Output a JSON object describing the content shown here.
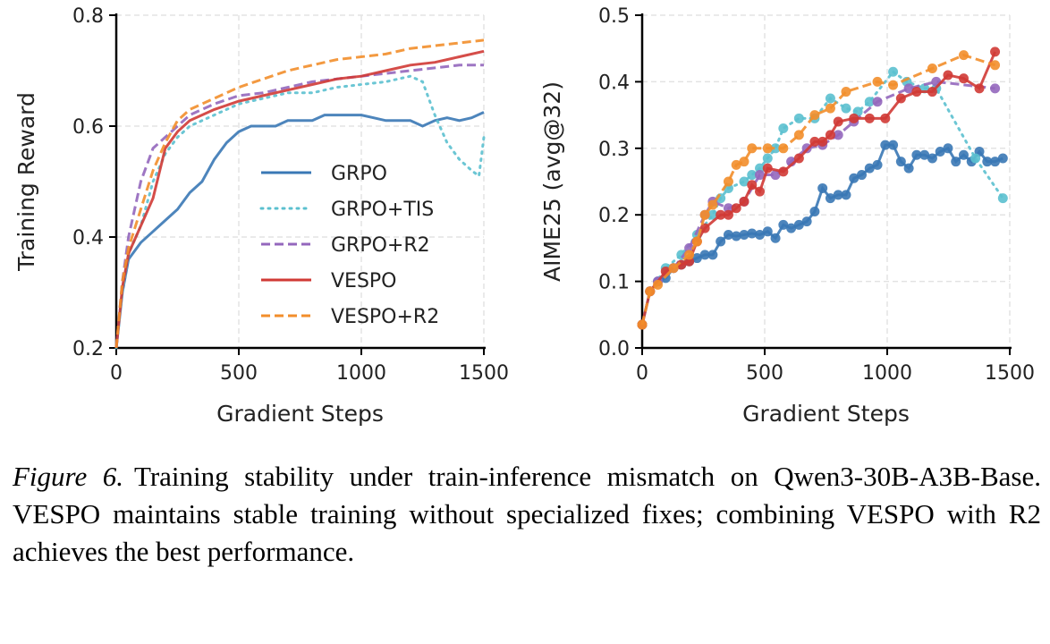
{
  "colors": {
    "GRPO": "#3a78b5",
    "GRPO+TIS": "#5bc0cf",
    "GRPO+R2": "#9467bd",
    "VESPO": "#d03a35",
    "VESPO+R2": "#f28e2b"
  },
  "chart_data": [
    {
      "type": "line",
      "xlabel": "Gradient Steps",
      "ylabel": "Training Reward",
      "xlim": [
        0,
        1500
      ],
      "ylim": [
        0.2,
        0.8
      ],
      "xticks": [
        0,
        500,
        1000,
        1500
      ],
      "yticks": [
        0.2,
        0.4,
        0.6,
        0.8
      ],
      "grid": true,
      "legend": "center-right",
      "series": [
        {
          "name": "GRPO",
          "style": "solid",
          "x": [
            0,
            25,
            50,
            100,
            150,
            200,
            250,
            300,
            350,
            400,
            450,
            500,
            550,
            600,
            650,
            700,
            750,
            800,
            850,
            900,
            950,
            1000,
            1050,
            1100,
            1150,
            1200,
            1250,
            1300,
            1350,
            1400,
            1450,
            1500
          ],
          "y": [
            0.2,
            0.3,
            0.36,
            0.39,
            0.41,
            0.43,
            0.45,
            0.48,
            0.5,
            0.54,
            0.57,
            0.59,
            0.6,
            0.6,
            0.6,
            0.61,
            0.61,
            0.61,
            0.62,
            0.62,
            0.62,
            0.62,
            0.615,
            0.61,
            0.61,
            0.61,
            0.6,
            0.61,
            0.615,
            0.61,
            0.615,
            0.625
          ]
        },
        {
          "name": "GRPO+TIS",
          "style": "dotted",
          "x": [
            0,
            25,
            50,
            100,
            150,
            200,
            250,
            300,
            350,
            400,
            450,
            500,
            600,
            700,
            800,
            900,
            1000,
            1100,
            1200,
            1250,
            1300,
            1350,
            1400,
            1450,
            1480,
            1500
          ],
          "y": [
            0.2,
            0.3,
            0.37,
            0.42,
            0.5,
            0.55,
            0.58,
            0.6,
            0.61,
            0.62,
            0.63,
            0.64,
            0.65,
            0.66,
            0.66,
            0.67,
            0.675,
            0.68,
            0.69,
            0.68,
            0.62,
            0.57,
            0.54,
            0.52,
            0.51,
            0.58
          ]
        },
        {
          "name": "GRPO+R2",
          "style": "dashed",
          "x": [
            0,
            25,
            50,
            100,
            150,
            200,
            250,
            300,
            400,
            500,
            600,
            700,
            800,
            900,
            1000,
            1100,
            1200,
            1300,
            1400,
            1500
          ],
          "y": [
            0.2,
            0.32,
            0.4,
            0.5,
            0.56,
            0.58,
            0.6,
            0.62,
            0.64,
            0.655,
            0.66,
            0.67,
            0.68,
            0.685,
            0.69,
            0.695,
            0.7,
            0.705,
            0.71,
            0.71
          ]
        },
        {
          "name": "VESPO",
          "style": "solid",
          "x": [
            0,
            25,
            50,
            100,
            150,
            200,
            250,
            300,
            400,
            500,
            600,
            700,
            800,
            900,
            1000,
            1100,
            1200,
            1300,
            1400,
            1500
          ],
          "y": [
            0.2,
            0.31,
            0.37,
            0.42,
            0.47,
            0.56,
            0.59,
            0.61,
            0.63,
            0.645,
            0.655,
            0.665,
            0.675,
            0.685,
            0.69,
            0.7,
            0.71,
            0.715,
            0.725,
            0.735
          ]
        },
        {
          "name": "VESPO+R2",
          "style": "dashed",
          "x": [
            0,
            25,
            50,
            100,
            150,
            200,
            250,
            300,
            400,
            500,
            600,
            700,
            800,
            900,
            1000,
            1100,
            1200,
            1300,
            1400,
            1500
          ],
          "y": [
            0.2,
            0.32,
            0.38,
            0.45,
            0.52,
            0.57,
            0.61,
            0.63,
            0.65,
            0.67,
            0.685,
            0.7,
            0.71,
            0.72,
            0.725,
            0.73,
            0.74,
            0.745,
            0.75,
            0.755
          ]
        }
      ]
    },
    {
      "type": "line",
      "xlabel": "Gradient Steps",
      "ylabel": "AIME25 (avg@32)",
      "xlim": [
        0,
        1500
      ],
      "ylim": [
        0,
        0.5
      ],
      "xticks": [
        0,
        500,
        1000,
        1500
      ],
      "yticks": [
        0.0,
        0.1,
        0.2,
        0.3,
        0.4,
        0.5
      ],
      "grid": true,
      "markers": true,
      "series": [
        {
          "name": "GRPO",
          "style": "solid",
          "x": [
            0,
            32,
            64,
            96,
            128,
            160,
            192,
            224,
            256,
            288,
            320,
            352,
            384,
            416,
            448,
            480,
            512,
            544,
            576,
            608,
            640,
            672,
            704,
            736,
            768,
            800,
            832,
            864,
            896,
            928,
            960,
            992,
            1024,
            1056,
            1088,
            1120,
            1152,
            1184,
            1216,
            1248,
            1280,
            1312,
            1344,
            1376,
            1408,
            1440,
            1472
          ],
          "y": [
            0.035,
            0.085,
            0.1,
            0.105,
            0.12,
            0.125,
            0.13,
            0.135,
            0.14,
            0.14,
            0.16,
            0.17,
            0.168,
            0.17,
            0.172,
            0.17,
            0.175,
            0.165,
            0.185,
            0.18,
            0.185,
            0.19,
            0.205,
            0.24,
            0.225,
            0.23,
            0.23,
            0.255,
            0.26,
            0.27,
            0.275,
            0.305,
            0.305,
            0.28,
            0.27,
            0.29,
            0.29,
            0.285,
            0.295,
            0.3,
            0.28,
            0.29,
            0.28,
            0.295,
            0.28,
            0.28,
            0.285
          ]
        },
        {
          "name": "GRPO+TIS",
          "style": "dotted",
          "x": [
            0,
            32,
            96,
            160,
            224,
            288,
            320,
            352,
            416,
            448,
            480,
            512,
            544,
            576,
            640,
            704,
            768,
            832,
            880,
            928,
            1024,
            1080,
            1152,
            1200,
            1360,
            1472
          ],
          "y": [
            0.035,
            0.085,
            0.12,
            0.14,
            0.17,
            0.2,
            0.225,
            0.24,
            0.25,
            0.26,
            0.27,
            0.285,
            0.3,
            0.33,
            0.345,
            0.345,
            0.375,
            0.36,
            0.355,
            0.37,
            0.415,
            0.4,
            0.39,
            0.39,
            0.285,
            0.225
          ]
        },
        {
          "name": "GRPO+R2",
          "style": "dashed",
          "x": [
            0,
            32,
            64,
            128,
            192,
            256,
            288,
            352,
            416,
            480,
            544,
            608,
            672,
            736,
            800,
            864,
            960,
            1088,
            1200,
            1440
          ],
          "y": [
            0.035,
            0.085,
            0.1,
            0.12,
            0.15,
            0.2,
            0.22,
            0.21,
            0.22,
            0.26,
            0.26,
            0.28,
            0.3,
            0.305,
            0.32,
            0.34,
            0.37,
            0.39,
            0.4,
            0.39
          ]
        },
        {
          "name": "VESPO",
          "style": "solid",
          "x": [
            0,
            32,
            96,
            160,
            192,
            224,
            256,
            320,
            352,
            384,
            416,
            448,
            480,
            512,
            576,
            640,
            704,
            736,
            768,
            800,
            864,
            928,
            992,
            1056,
            1120,
            1184,
            1248,
            1312,
            1376,
            1440
          ],
          "y": [
            0.035,
            0.085,
            0.115,
            0.125,
            0.13,
            0.16,
            0.18,
            0.2,
            0.2,
            0.21,
            0.22,
            0.245,
            0.235,
            0.27,
            0.265,
            0.285,
            0.31,
            0.31,
            0.32,
            0.34,
            0.345,
            0.345,
            0.345,
            0.375,
            0.385,
            0.385,
            0.41,
            0.405,
            0.39,
            0.445
          ]
        },
        {
          "name": "VESPO+R2",
          "style": "dashed",
          "x": [
            0,
            32,
            64,
            128,
            192,
            224,
            256,
            288,
            352,
            384,
            416,
            448,
            512,
            576,
            640,
            704,
            768,
            832,
            960,
            1024,
            1184,
            1312,
            1440
          ],
          "y": [
            0.035,
            0.085,
            0.095,
            0.12,
            0.14,
            0.16,
            0.2,
            0.215,
            0.25,
            0.275,
            0.28,
            0.3,
            0.3,
            0.3,
            0.32,
            0.35,
            0.36,
            0.385,
            0.4,
            0.395,
            0.42,
            0.44,
            0.425
          ]
        }
      ]
    }
  ],
  "caption": {
    "label": "Figure 6.",
    "text": "Training stability under train-inference mismatch on Qwen3-30B-A3B-Base. VESPO maintains stable training without specialized fixes; combining VESPO with R2 achieves the best performance."
  }
}
